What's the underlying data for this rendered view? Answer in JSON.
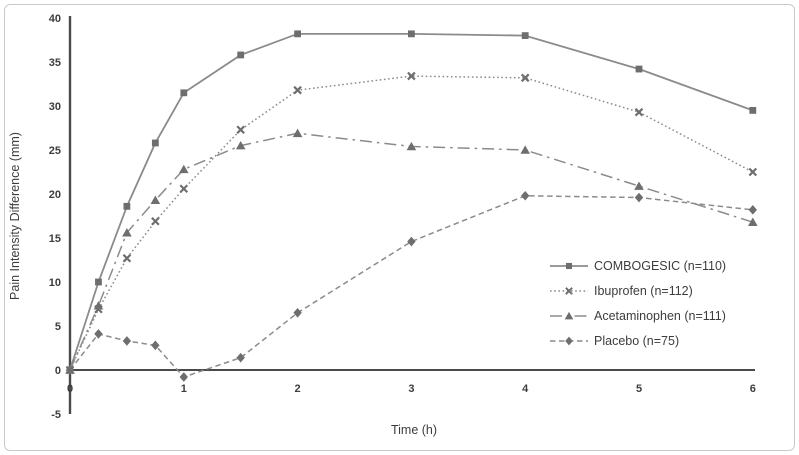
{
  "chart_data": {
    "type": "line",
    "title": "",
    "xlabel": "Time (h)",
    "ylabel": "Pain Intensity Difference (mm)",
    "xlim": [
      0,
      6
    ],
    "ylim": [
      -5,
      40
    ],
    "x_ticks": [
      0,
      1,
      2,
      3,
      4,
      5,
      6
    ],
    "y_ticks": [
      40,
      35,
      30,
      25,
      20,
      15,
      10,
      5,
      0,
      -5
    ],
    "grid": false,
    "legend_position": "center-right",
    "x": [
      0,
      0.25,
      0.5,
      0.75,
      1,
      1.5,
      2,
      3,
      4,
      5,
      6
    ],
    "series": [
      {
        "id": "combogesic",
        "name": "COMBOGESIC (n=110)",
        "marker": "square",
        "line_style": "solid",
        "values": [
          0,
          10.0,
          18.6,
          25.8,
          31.5,
          35.8,
          38.2,
          38.2,
          38.0,
          34.2,
          29.5
        ]
      },
      {
        "id": "ibuprofen",
        "name": "Ibuprofen (n=112)",
        "marker": "x",
        "line_style": "dotted",
        "values": [
          0,
          6.9,
          12.7,
          16.9,
          20.6,
          27.3,
          31.8,
          33.4,
          33.2,
          29.3,
          22.5
        ]
      },
      {
        "id": "acetaminophen",
        "name": "Acetaminophen (n=111)",
        "marker": "triangle",
        "line_style": "dash-dot",
        "values": [
          0,
          7.3,
          15.6,
          19.3,
          22.8,
          25.5,
          26.9,
          25.4,
          25.0,
          20.9,
          16.8
        ]
      },
      {
        "id": "placebo",
        "name": "Placebo (n=75)",
        "marker": "diamond",
        "line_style": "dashed",
        "values": [
          0,
          4.1,
          3.3,
          2.8,
          -0.8,
          1.4,
          6.5,
          14.6,
          19.8,
          19.6,
          18.2
        ]
      }
    ],
    "colors": {
      "series_line": "#8b8b8b",
      "series_marker": "#6e6e6e",
      "axis": "#4a4a4a",
      "tick_text": "#3d3d3d",
      "figure_border": "#c9c9c9",
      "background": "#ffffff"
    }
  }
}
